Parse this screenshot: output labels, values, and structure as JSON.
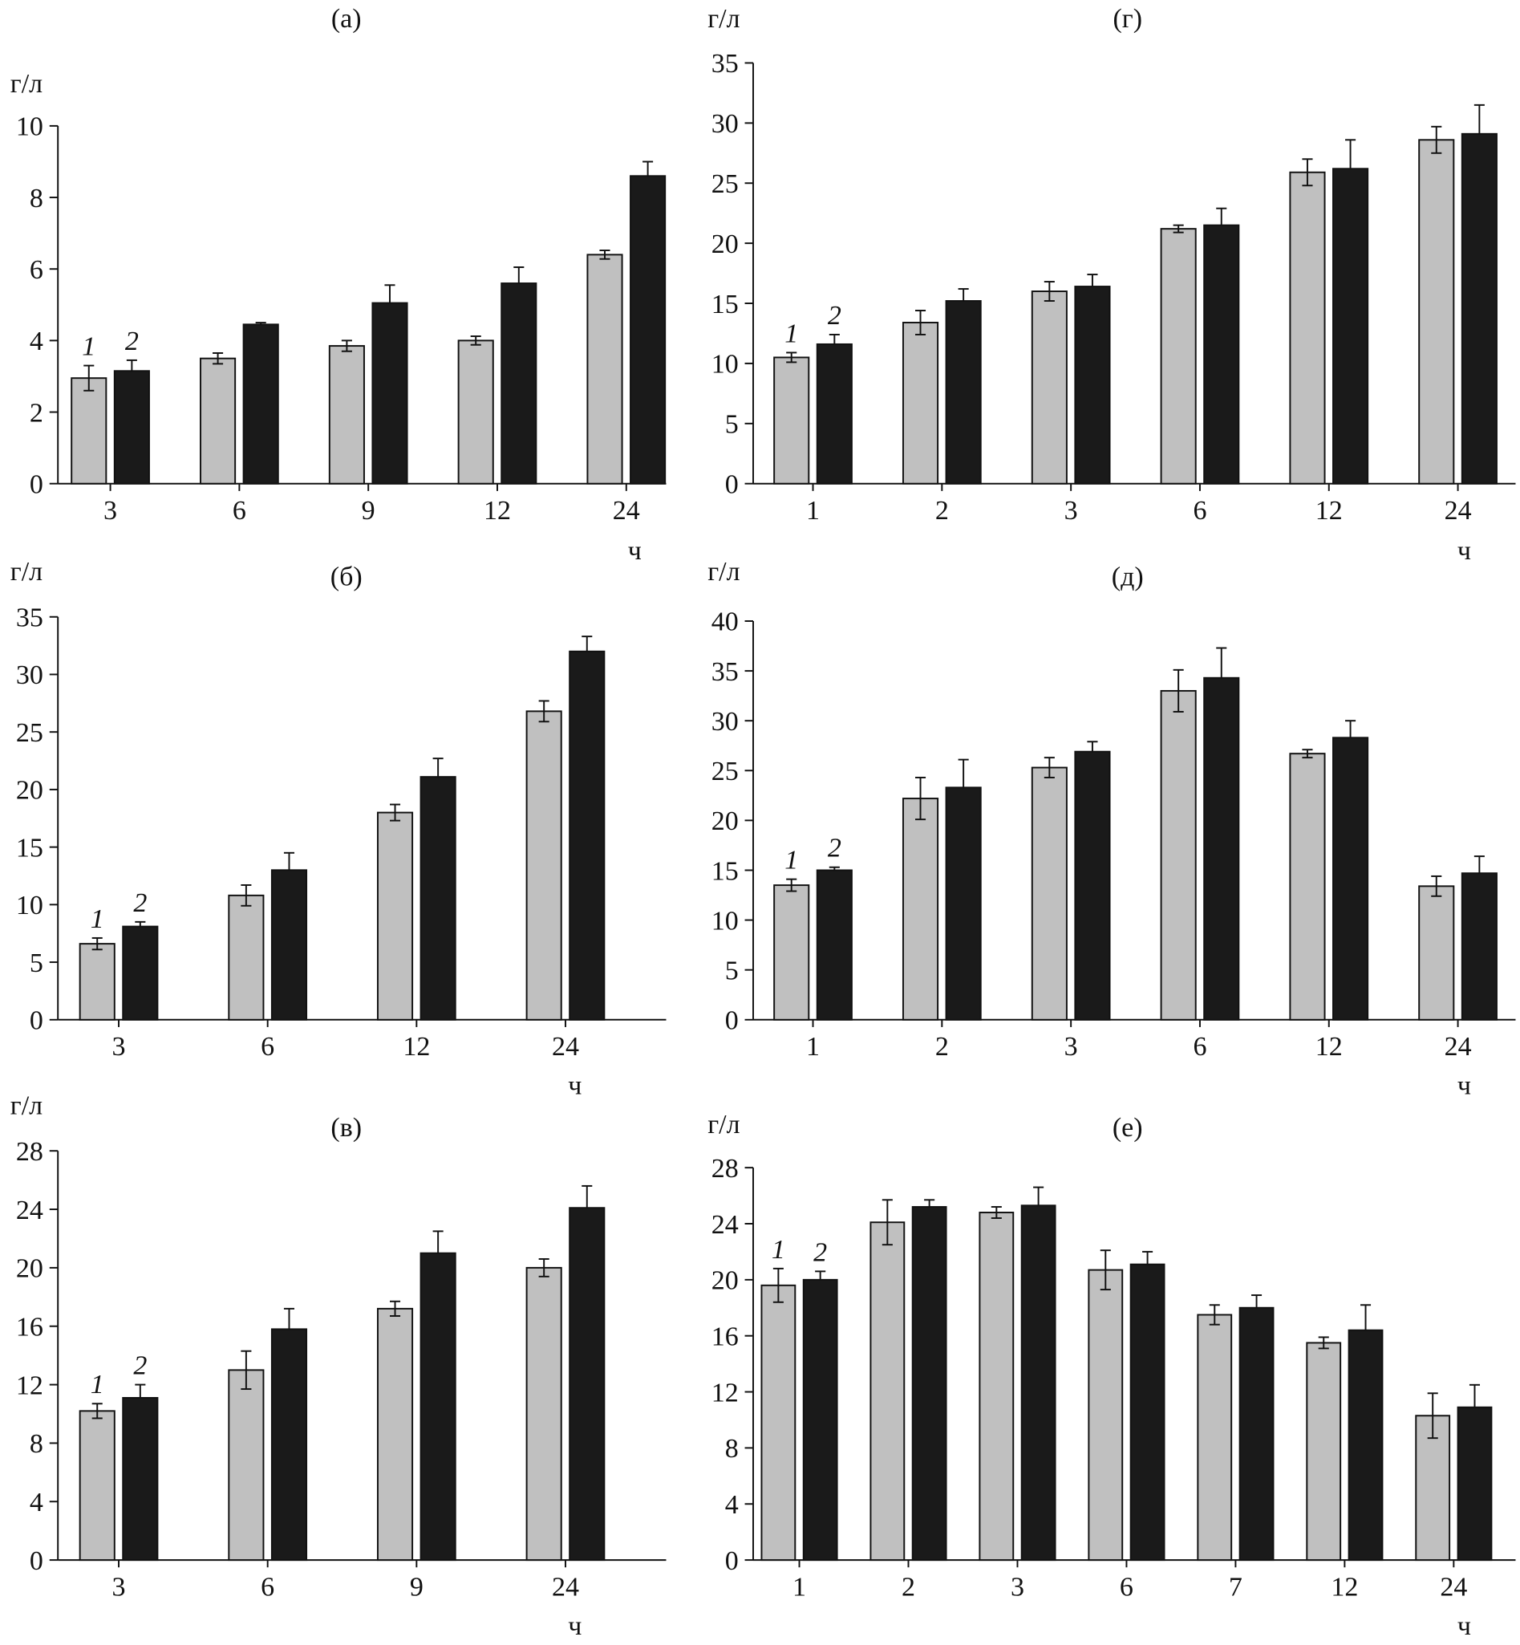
{
  "colors": {
    "series1": "#c0c0c0",
    "series2": "#1a1a1a",
    "axis": "#111111"
  },
  "chart_data": [
    {
      "type": "bar",
      "panel_label": "(а)",
      "ylabel": "г/л",
      "xlabel": "ч",
      "categories": [
        "3",
        "6",
        "9",
        "12",
        "24"
      ],
      "ylim": [
        0,
        10
      ],
      "yticks": [
        0,
        2,
        4,
        6,
        8,
        10
      ],
      "grid": false,
      "series": [
        {
          "name": "1",
          "values": [
            2.95,
            3.5,
            3.85,
            4.0,
            6.4
          ],
          "errors": [
            0.35,
            0.15,
            0.15,
            0.12,
            0.12
          ]
        },
        {
          "name": "2",
          "values": [
            3.15,
            4.45,
            5.05,
            5.6,
            8.6
          ],
          "errors": [
            0.3,
            0.05,
            0.5,
            0.45,
            0.4
          ]
        }
      ]
    },
    {
      "type": "bar",
      "panel_label": "(б)",
      "ylabel": "г/л",
      "xlabel": "ч",
      "categories": [
        "3",
        "6",
        "12",
        "24"
      ],
      "ylim": [
        0,
        35
      ],
      "yticks": [
        0,
        5,
        10,
        15,
        20,
        25,
        30,
        35
      ],
      "grid": false,
      "series": [
        {
          "name": "1",
          "values": [
            6.6,
            10.8,
            18.0,
            26.8
          ],
          "errors": [
            0.5,
            0.9,
            0.7,
            0.9
          ]
        },
        {
          "name": "2",
          "values": [
            8.1,
            13.0,
            21.1,
            32.0
          ],
          "errors": [
            0.4,
            1.5,
            1.6,
            1.3
          ]
        }
      ]
    },
    {
      "type": "bar",
      "panel_label": "(в)",
      "ylabel": "г/л",
      "xlabel": "ч",
      "categories": [
        "3",
        "6",
        "9",
        "24"
      ],
      "ylim": [
        0,
        28
      ],
      "yticks": [
        0,
        4,
        8,
        12,
        16,
        20,
        24,
        28
      ],
      "grid": false,
      "series": [
        {
          "name": "1",
          "values": [
            10.2,
            13.0,
            17.2,
            20.0
          ],
          "errors": [
            0.5,
            1.3,
            0.5,
            0.6
          ]
        },
        {
          "name": "2",
          "values": [
            11.1,
            15.8,
            21.0,
            24.1
          ],
          "errors": [
            0.9,
            1.4,
            1.5,
            1.5
          ]
        }
      ]
    },
    {
      "type": "bar",
      "panel_label": "(г)",
      "ylabel": "г/л",
      "xlabel": "ч",
      "categories": [
        "1",
        "2",
        "3",
        "6",
        "12",
        "24"
      ],
      "ylim": [
        0,
        35
      ],
      "yticks": [
        0,
        5,
        10,
        15,
        20,
        25,
        30,
        35
      ],
      "grid": false,
      "series": [
        {
          "name": "1",
          "values": [
            10.5,
            13.4,
            16.0,
            21.2,
            25.9,
            28.6
          ],
          "errors": [
            0.4,
            1.0,
            0.8,
            0.3,
            1.1,
            1.1
          ]
        },
        {
          "name": "2",
          "values": [
            11.6,
            15.2,
            16.4,
            21.5,
            26.2,
            29.1
          ],
          "errors": [
            0.8,
            1.0,
            1.0,
            1.4,
            2.4,
            2.4
          ]
        }
      ]
    },
    {
      "type": "bar",
      "panel_label": "(д)",
      "ylabel": "г/л",
      "xlabel": "ч",
      "categories": [
        "1",
        "2",
        "3",
        "6",
        "12",
        "24"
      ],
      "ylim": [
        0,
        40
      ],
      "yticks": [
        0,
        5,
        10,
        15,
        20,
        25,
        30,
        35,
        40
      ],
      "grid": false,
      "series": [
        {
          "name": "1",
          "values": [
            13.5,
            22.2,
            25.3,
            33.0,
            26.7,
            13.4
          ],
          "errors": [
            0.6,
            2.1,
            1.0,
            2.1,
            0.4,
            1.0
          ]
        },
        {
          "name": "2",
          "values": [
            15.0,
            23.3,
            26.9,
            34.3,
            28.3,
            14.7
          ],
          "errors": [
            0.3,
            2.8,
            1.0,
            3.0,
            1.7,
            1.7
          ]
        }
      ]
    },
    {
      "type": "bar",
      "panel_label": "(е)",
      "ylabel": "г/л",
      "xlabel": "ч",
      "categories": [
        "1",
        "2",
        "3",
        "6",
        "7",
        "12",
        "24"
      ],
      "ylim": [
        0,
        28
      ],
      "yticks": [
        0,
        4,
        8,
        12,
        16,
        20,
        24,
        28
      ],
      "grid": false,
      "series": [
        {
          "name": "1",
          "values": [
            19.6,
            24.1,
            24.8,
            20.7,
            17.5,
            15.5,
            10.3
          ],
          "errors": [
            1.2,
            1.6,
            0.4,
            1.4,
            0.7,
            0.4,
            1.6
          ]
        },
        {
          "name": "2",
          "values": [
            20.0,
            25.2,
            25.3,
            21.1,
            18.0,
            16.4,
            10.9
          ],
          "errors": [
            0.6,
            0.5,
            1.3,
            0.9,
            0.9,
            1.8,
            1.6
          ]
        }
      ]
    }
  ]
}
